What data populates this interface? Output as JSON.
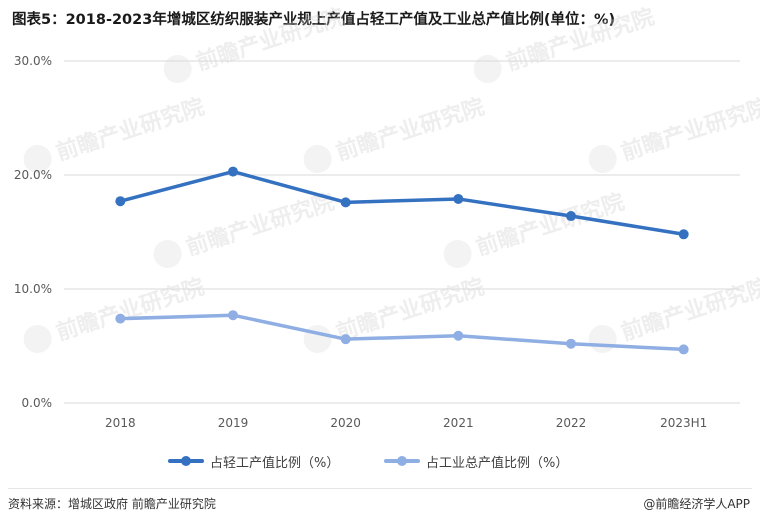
{
  "title": "图表5：2018-2023年增城区纺织服装产业规上产值占轻工产值及工业总产值比例(单位：%)",
  "source": "资料来源：增城区政府 前瞻产业研究院",
  "brand": "@前瞻经济学人APP",
  "watermark": "前瞻产业研究院",
  "colors": {
    "series1": "#3471c1",
    "series2": "#8faee3",
    "grid": "#d9d9d9",
    "axis_text": "#595959"
  },
  "chart_data": {
    "type": "line",
    "categories": [
      "2018",
      "2019",
      "2020",
      "2021",
      "2022",
      "2023H1"
    ],
    "ylim": [
      0,
      30
    ],
    "yticks": [
      0,
      10,
      20,
      30
    ],
    "ytick_labels": [
      "0.0%",
      "10.0%",
      "20.0%",
      "30.0%"
    ],
    "grid": true,
    "legend_position": "bottom",
    "series": [
      {
        "name": "占轻工产值比例（%）",
        "values": [
          17.7,
          20.3,
          17.6,
          17.9,
          16.4,
          14.8
        ]
      },
      {
        "name": "占工业总产值比例（%）",
        "values": [
          7.4,
          7.7,
          5.6,
          5.9,
          5.2,
          4.7
        ]
      }
    ]
  }
}
